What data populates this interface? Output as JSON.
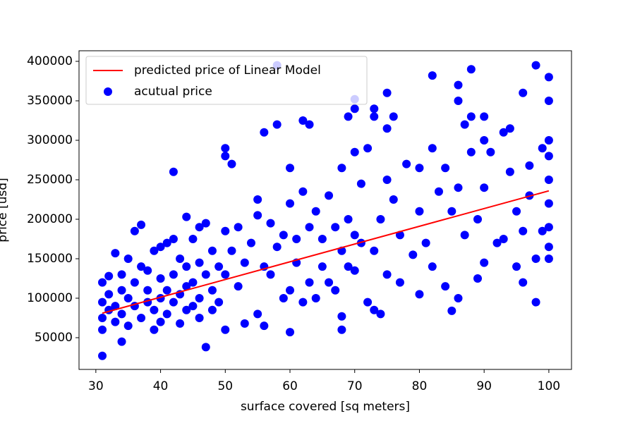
{
  "chart_data": {
    "type": "scatter",
    "xlabel": "surface covered [sq meters]",
    "ylabel": "price [usd]",
    "xlim": [
      27.4,
      103.5
    ],
    "ylim": [
      9800,
      413400
    ],
    "xticks": [
      30,
      40,
      50,
      60,
      70,
      80,
      90,
      100
    ],
    "yticks": [
      50000,
      100000,
      150000,
      200000,
      250000,
      300000,
      350000,
      400000
    ],
    "grid": false,
    "legend": "upper left",
    "line": {
      "name": "predicted price of Linear Model",
      "color": "#ff0000",
      "x": [
        31,
        100
      ],
      "values": [
        81000,
        236000
      ]
    },
    "series": [
      {
        "name": "acutual price",
        "color": "#0000ff",
        "x": [
          31,
          31,
          31,
          31,
          31,
          32,
          32,
          32,
          33,
          33,
          33,
          34,
          34,
          34,
          34,
          35,
          35,
          35,
          36,
          36,
          36,
          37,
          37,
          37,
          38,
          38,
          38,
          39,
          39,
          39,
          40,
          40,
          40,
          40,
          41,
          41,
          41,
          42,
          42,
          42,
          42,
          43,
          43,
          43,
          44,
          44,
          44,
          44,
          45,
          45,
          45,
          46,
          46,
          46,
          46,
          47,
          47,
          47,
          48,
          48,
          48,
          49,
          49,
          50,
          50,
          50,
          50,
          50,
          51,
          51,
          52,
          52,
          53,
          53,
          54,
          55,
          55,
          55,
          56,
          56,
          56,
          57,
          57,
          58,
          58,
          58,
          59,
          59,
          60,
          60,
          60,
          60,
          61,
          61,
          62,
          62,
          62,
          63,
          63,
          63,
          64,
          64,
          65,
          65,
          66,
          66,
          67,
          67,
          68,
          68,
          68,
          68,
          69,
          69,
          69,
          70,
          70,
          70,
          70,
          70,
          71,
          71,
          72,
          72,
          73,
          73,
          73,
          73,
          74,
          74,
          75,
          75,
          75,
          75,
          76,
          76,
          77,
          77,
          78,
          79,
          80,
          80,
          80,
          81,
          82,
          82,
          82,
          83,
          84,
          84,
          85,
          85,
          86,
          86,
          86,
          86,
          87,
          87,
          88,
          88,
          88,
          89,
          89,
          90,
          90,
          90,
          90,
          91,
          92,
          93,
          93,
          94,
          94,
          95,
          95,
          96,
          96,
          96,
          97,
          97,
          98,
          98,
          98,
          99,
          99,
          100,
          100,
          100,
          100,
          100,
          100,
          100,
          100,
          100
        ],
        "values": [
          120000,
          95000,
          75000,
          27000,
          60000,
          105000,
          85000,
          128000,
          157000,
          90000,
          70000,
          130000,
          110000,
          45000,
          80000,
          150000,
          100000,
          65000,
          185000,
          120000,
          90000,
          193000,
          140000,
          75000,
          110000,
          95000,
          135000,
          160000,
          85000,
          60000,
          165000,
          125000,
          100000,
          70000,
          170000,
          110000,
          80000,
          260000,
          175000,
          130000,
          95000,
          150000,
          105000,
          68000,
          203000,
          140000,
          115000,
          85000,
          175000,
          120000,
          90000,
          190000,
          145000,
          100000,
          75000,
          195000,
          130000,
          38000,
          160000,
          110000,
          85000,
          140000,
          95000,
          290000,
          280000,
          185000,
          130000,
          60000,
          270000,
          160000,
          190000,
          115000,
          68000,
          145000,
          170000,
          225000,
          205000,
          80000,
          310000,
          65000,
          140000,
          130000,
          195000,
          395000,
          320000,
          165000,
          180000,
          100000,
          265000,
          220000,
          57000,
          110000,
          175000,
          145000,
          325000,
          235000,
          95000,
          320000,
          190000,
          120000,
          210000,
          100000,
          175000,
          140000,
          230000,
          120000,
          110000,
          190000,
          265000,
          77000,
          60000,
          160000,
          330000,
          200000,
          140000,
          352000,
          340000,
          285000,
          180000,
          135000,
          245000,
          170000,
          290000,
          95000,
          340000,
          330000,
          85000,
          160000,
          80000,
          200000,
          360000,
          315000,
          250000,
          130000,
          330000,
          225000,
          120000,
          180000,
          270000,
          155000,
          265000,
          105000,
          210000,
          170000,
          382000,
          290000,
          140000,
          235000,
          115000,
          265000,
          84000,
          210000,
          370000,
          350000,
          100000,
          240000,
          320000,
          180000,
          390000,
          330000,
          285000,
          125000,
          200000,
          330000,
          300000,
          145000,
          240000,
          285000,
          170000,
          310000,
          175000,
          315000,
          260000,
          140000,
          210000,
          360000,
          120000,
          185000,
          268000,
          230000,
          395000,
          95000,
          150000,
          290000,
          185000,
          380000,
          350000,
          300000,
          280000,
          250000,
          220000,
          190000,
          165000,
          150000
        ]
      }
    ]
  }
}
